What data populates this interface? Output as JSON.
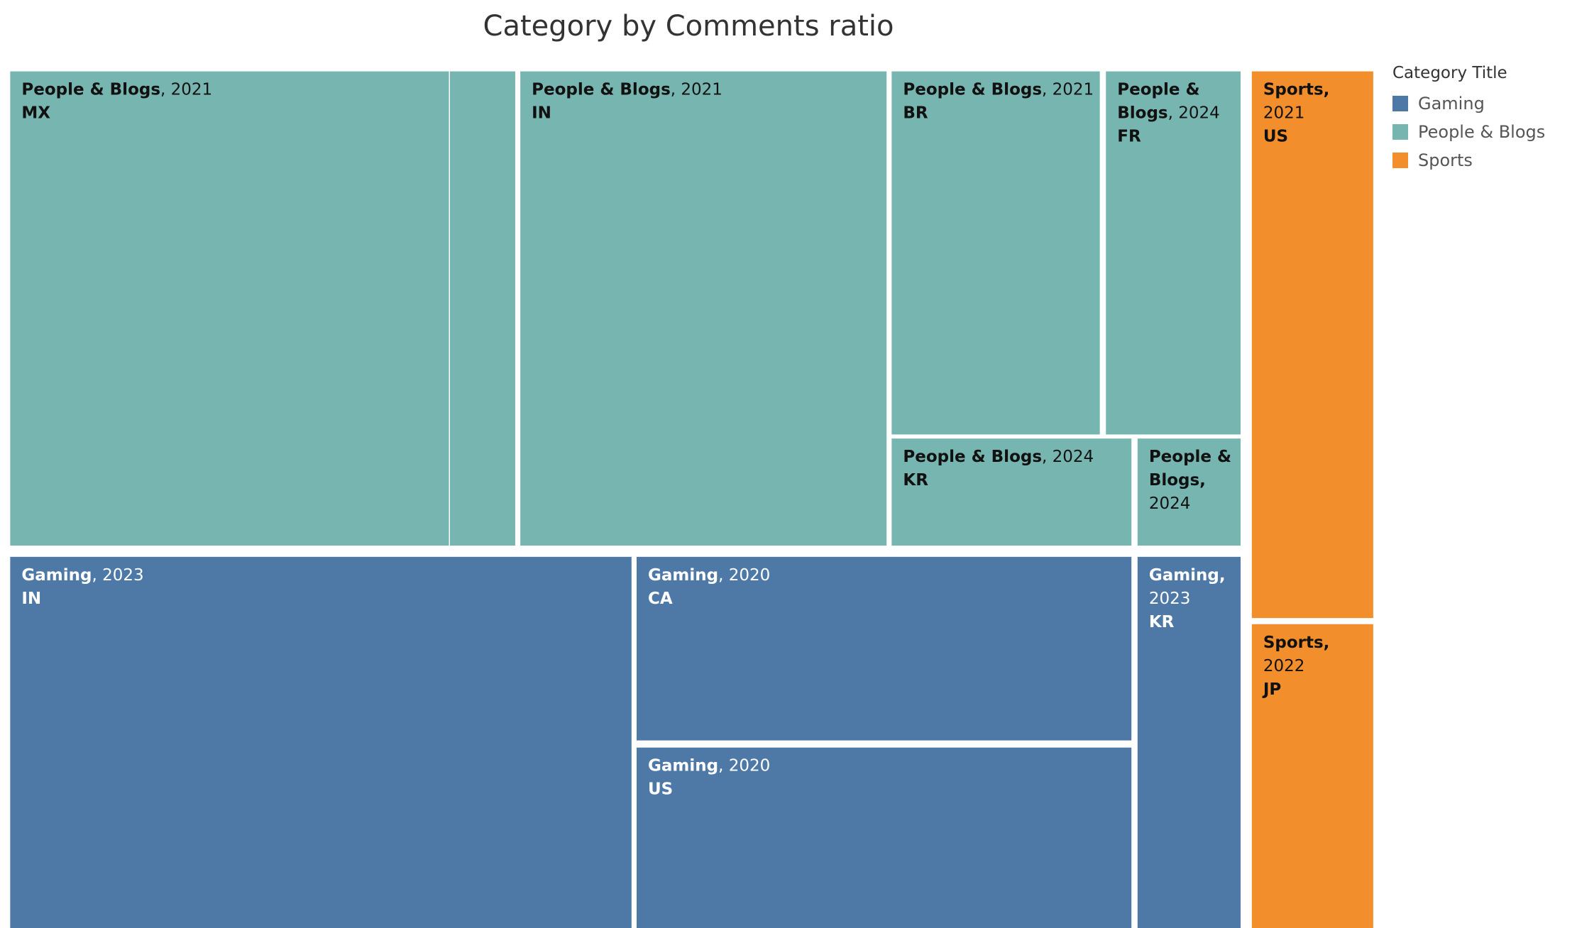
{
  "chart_data": {
    "type": "treemap",
    "title": "Category by Comments ratio",
    "legend": {
      "title": "Category Title",
      "placement": "right",
      "entries": [
        "Gaming",
        "People & Blogs",
        "Sports"
      ]
    },
    "colors": {
      "Gaming": "#4e79a7",
      "People & Blogs": "#76b5b0",
      "Sports": "#f28e2c"
    },
    "groups": [
      {
        "category": "People & Blogs",
        "items": [
          {
            "year": "2021",
            "country": "MX"
          },
          {
            "year": "",
            "country": ""
          },
          {
            "year": "2021",
            "country": "IN"
          },
          {
            "year": "2021",
            "country": "BR"
          },
          {
            "year": "2024",
            "country": "FR"
          },
          {
            "year": "2024",
            "country": "KR"
          },
          {
            "year": "2024",
            "country": ""
          }
        ]
      },
      {
        "category": "Gaming",
        "items": [
          {
            "year": "2023",
            "country": "IN"
          },
          {
            "year": "2020",
            "country": "CA"
          },
          {
            "year": "2020",
            "country": "US"
          },
          {
            "year": "2023",
            "country": "KR"
          }
        ]
      },
      {
        "category": "Sports",
        "items": [
          {
            "year": "2021",
            "country": "US"
          },
          {
            "year": "2022",
            "country": "JP"
          }
        ]
      }
    ]
  }
}
